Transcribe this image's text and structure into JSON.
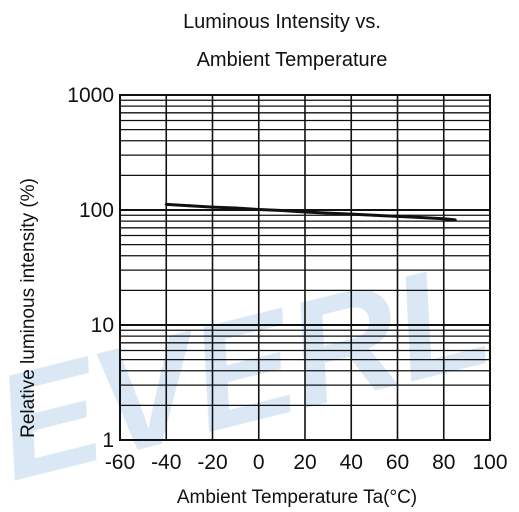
{
  "chart_data": {
    "type": "line",
    "title_lines": [
      "Luminous Intensity vs.",
      "Ambient Temperature"
    ],
    "xlabel": "Ambient Temperature Ta(°C)",
    "ylabel": "Relative luminous intensity   (%)",
    "x_ticks": [
      "-60",
      "-40",
      "-20",
      "0",
      "20",
      "40",
      "60",
      "80",
      "100"
    ],
    "y_ticks": [
      "1000",
      "100",
      "10",
      "1"
    ],
    "xlim": [
      -60,
      100
    ],
    "ylim": [
      1,
      1000
    ],
    "y_scale": "log",
    "grid": true,
    "series": [
      {
        "x": [
          -40,
          -30,
          -20,
          -10,
          0,
          10,
          20,
          30,
          40,
          50,
          60,
          70,
          80,
          85
        ],
        "values": [
          112,
          109,
          106,
          104,
          101,
          99,
          96,
          94,
          92,
          90,
          88,
          86,
          84,
          82
        ],
        "color": "#111111"
      }
    ]
  },
  "watermark_text": "EVERL"
}
